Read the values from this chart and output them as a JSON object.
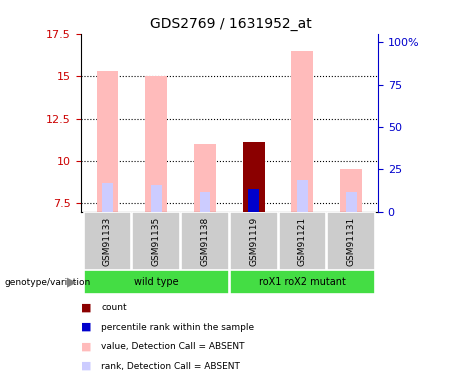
{
  "title": "GDS2769 / 1631952_at",
  "samples": [
    "GSM91133",
    "GSM91135",
    "GSM91138",
    "GSM91119",
    "GSM91121",
    "GSM91131"
  ],
  "ylim": [
    7.0,
    17.5
  ],
  "yticks_left": [
    7.5,
    10.0,
    12.5,
    15.0,
    17.5
  ],
  "ytick_labels_left": [
    "7.5",
    "10",
    "12.5",
    "15",
    "17.5"
  ],
  "yticks_right_vals": [
    7.0,
    9.5,
    12.0,
    14.5,
    17.0
  ],
  "ytick_labels_right": [
    "0",
    "25",
    "50",
    "75",
    "100%"
  ],
  "bar_bottom": 7.0,
  "value_bars": [
    15.3,
    15.0,
    11.0,
    0.0,
    16.5,
    9.5
  ],
  "rank_bars": [
    8.7,
    8.6,
    8.2,
    0.0,
    8.9,
    8.2
  ],
  "count_bars": [
    0.0,
    0.0,
    0.0,
    11.1,
    0.0,
    0.0
  ],
  "percentile_bars": [
    0.0,
    0.0,
    0.0,
    8.35,
    0.0,
    0.0
  ],
  "genotype_groups": [
    {
      "label": "wild type",
      "start": 0,
      "end": 3
    },
    {
      "label": "roX1 roX2 mutant",
      "start": 3,
      "end": 6
    }
  ],
  "color_value": "#ffbbbb",
  "color_rank": "#ccccff",
  "color_count": "#8b0000",
  "color_percentile": "#0000cc",
  "bar_width": 0.45,
  "rank_bar_width": 0.22,
  "left_axis_color": "#cc0000",
  "right_axis_color": "#0000cc",
  "grid_color": "black",
  "bg_sample_box": "#cccccc",
  "bg_genotype_box": "#44dd44",
  "legend_items": [
    {
      "color": "#8b0000",
      "label": "count"
    },
    {
      "color": "#0000cc",
      "label": "percentile rank within the sample"
    },
    {
      "color": "#ffbbbb",
      "label": "value, Detection Call = ABSENT"
    },
    {
      "color": "#ccccff",
      "label": "rank, Detection Call = ABSENT"
    }
  ]
}
